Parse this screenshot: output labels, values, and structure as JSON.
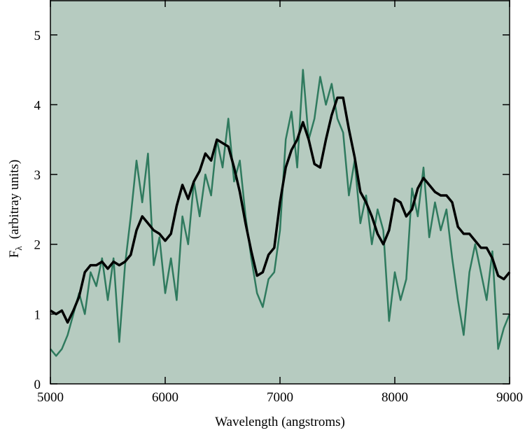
{
  "chart_data": {
    "type": "line",
    "xlabel": "Wavelength (angstroms)",
    "ylabel": [
      "F",
      "λ",
      "(arbitray units)"
    ],
    "x": [
      5000,
      5050,
      5100,
      5150,
      5200,
      5250,
      5300,
      5350,
      5400,
      5450,
      5500,
      5550,
      5600,
      5650,
      5700,
      5750,
      5800,
      5850,
      5900,
      5950,
      6000,
      6050,
      6100,
      6150,
      6200,
      6250,
      6300,
      6350,
      6400,
      6450,
      6500,
      6550,
      6600,
      6650,
      6700,
      6750,
      6800,
      6850,
      6900,
      6950,
      7000,
      7050,
      7100,
      7150,
      7200,
      7250,
      7300,
      7350,
      7400,
      7450,
      7500,
      7550,
      7600,
      7650,
      7700,
      7750,
      7800,
      7850,
      7900,
      7950,
      8000,
      8050,
      8100,
      8150,
      8200,
      8250,
      8300,
      8350,
      8400,
      8450,
      8500,
      8550,
      8600,
      8650,
      8700,
      8750,
      8800,
      8850,
      8900,
      8950,
      9000
    ],
    "series": [
      {
        "color": "#2f7a5e",
        "width": 2.5,
        "values": [
          0.5,
          0.4,
          0.5,
          0.7,
          1.0,
          1.3,
          1.0,
          1.6,
          1.4,
          1.8,
          1.2,
          1.8,
          0.6,
          1.7,
          2.4,
          3.2,
          2.6,
          3.3,
          1.7,
          2.1,
          1.3,
          1.8,
          1.2,
          2.4,
          2.0,
          2.9,
          2.4,
          3.0,
          2.7,
          3.5,
          3.1,
          3.8,
          2.9,
          3.2,
          2.4,
          1.8,
          1.3,
          1.1,
          1.5,
          1.6,
          2.2,
          3.5,
          3.9,
          3.1,
          4.5,
          3.5,
          3.8,
          4.4,
          4.0,
          4.3,
          3.8,
          3.6,
          2.7,
          3.2,
          2.3,
          2.7,
          2.0,
          2.5,
          2.2,
          0.9,
          1.6,
          1.2,
          1.5,
          2.8,
          2.4,
          3.1,
          2.1,
          2.6,
          2.2,
          2.5,
          1.8,
          1.2,
          0.7,
          1.6,
          2.0,
          1.6,
          1.2,
          1.9,
          0.5,
          0.8,
          1.0
        ]
      },
      {
        "color": "#000000",
        "width": 3.5,
        "values": [
          1.05,
          1.0,
          1.05,
          0.88,
          1.05,
          1.25,
          1.6,
          1.7,
          1.7,
          1.75,
          1.65,
          1.75,
          1.7,
          1.75,
          1.85,
          2.2,
          2.4,
          2.3,
          2.2,
          2.15,
          2.05,
          2.15,
          2.55,
          2.85,
          2.65,
          2.9,
          3.05,
          3.3,
          3.2,
          3.5,
          3.45,
          3.4,
          3.1,
          2.75,
          2.3,
          1.9,
          1.55,
          1.6,
          1.85,
          1.95,
          2.6,
          3.1,
          3.35,
          3.5,
          3.75,
          3.5,
          3.15,
          3.1,
          3.5,
          3.85,
          4.1,
          4.1,
          3.65,
          3.25,
          2.75,
          2.6,
          2.4,
          2.15,
          2.0,
          2.2,
          2.65,
          2.6,
          2.4,
          2.5,
          2.8,
          2.95,
          2.85,
          2.75,
          2.7,
          2.7,
          2.6,
          2.25,
          2.15,
          2.15,
          2.05,
          1.95,
          1.95,
          1.8,
          1.55,
          1.5,
          1.6
        ]
      }
    ],
    "xlim": [
      5000,
      9000
    ],
    "xticks": [
      5000,
      6000,
      7000,
      8000,
      9000
    ],
    "ylim": [
      0,
      5.5
    ],
    "yticks": [
      0,
      1,
      2,
      3,
      4,
      5
    ],
    "background": "#b6cbc0"
  }
}
